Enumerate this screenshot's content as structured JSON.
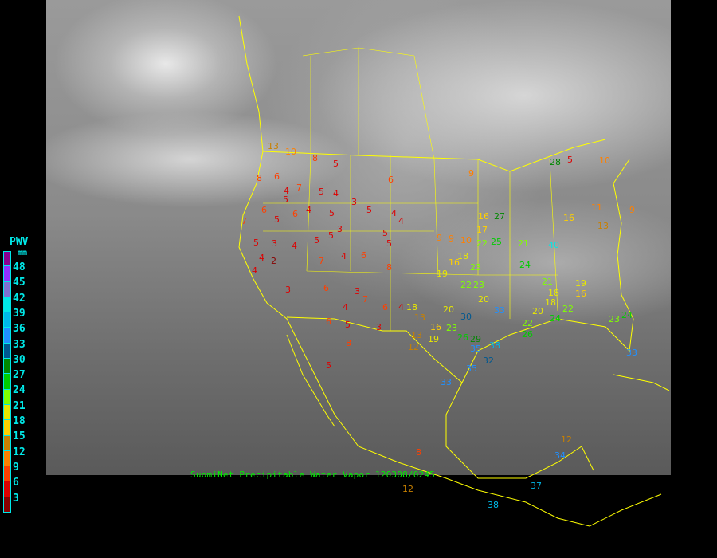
{
  "caption": "SuomiNet Precipitable Water Vapor  120308/0245",
  "legend": {
    "title": "PWV",
    "unit": "mm",
    "labels": [
      "48",
      "45",
      "42",
      "39",
      "36",
      "33",
      "30",
      "27",
      "24",
      "21",
      "18",
      "15",
      "12",
      "9",
      "6",
      "3"
    ],
    "colors": [
      "#8b0090",
      "#9030ff",
      "#8070d0",
      "#00e8e8",
      "#00b8e8",
      "#2090ff",
      "#005890",
      "#008800",
      "#00cc00",
      "#80ff00",
      "#e8e800",
      "#ffd000",
      "#c88000",
      "#ff8000",
      "#ff4000",
      "#dd0000",
      "#880000"
    ]
  },
  "map_colors": {
    "borders": "#ffff00",
    "background": "#000000"
  },
  "stations": [
    "13",
    "10",
    "8",
    "5",
    "6",
    "9",
    "8",
    "6",
    "7",
    "4",
    "5",
    "4",
    "6",
    "5",
    "5",
    "4",
    "5",
    "6",
    "3",
    "5",
    "4",
    "4",
    "7",
    "5",
    "3",
    "4",
    "4",
    "5",
    "7",
    "5",
    "3",
    "4",
    "6",
    "5",
    "5",
    "2",
    "4",
    "3",
    "6",
    "3",
    "4",
    "7",
    "6",
    "4",
    "8",
    "9",
    "3",
    "8",
    "5",
    "6",
    "5",
    "9",
    "10",
    "16",
    "27",
    "18",
    "22",
    "25",
    "16",
    "19",
    "23",
    "21",
    "28",
    "24",
    "20",
    "22",
    "23",
    "20",
    "33",
    "30",
    "13",
    "18",
    "16",
    "13",
    "12",
    "19",
    "23",
    "26",
    "29",
    "35",
    "32",
    "38",
    "35",
    "33",
    "21",
    "18",
    "20",
    "19",
    "16",
    "22",
    "26",
    "24",
    "18",
    "22",
    "23",
    "24",
    "33",
    "40",
    "17",
    "16",
    "11",
    "13",
    "10",
    "9",
    "5",
    "8",
    "12",
    "34",
    "37",
    "38",
    "12",
    "26"
  ]
}
